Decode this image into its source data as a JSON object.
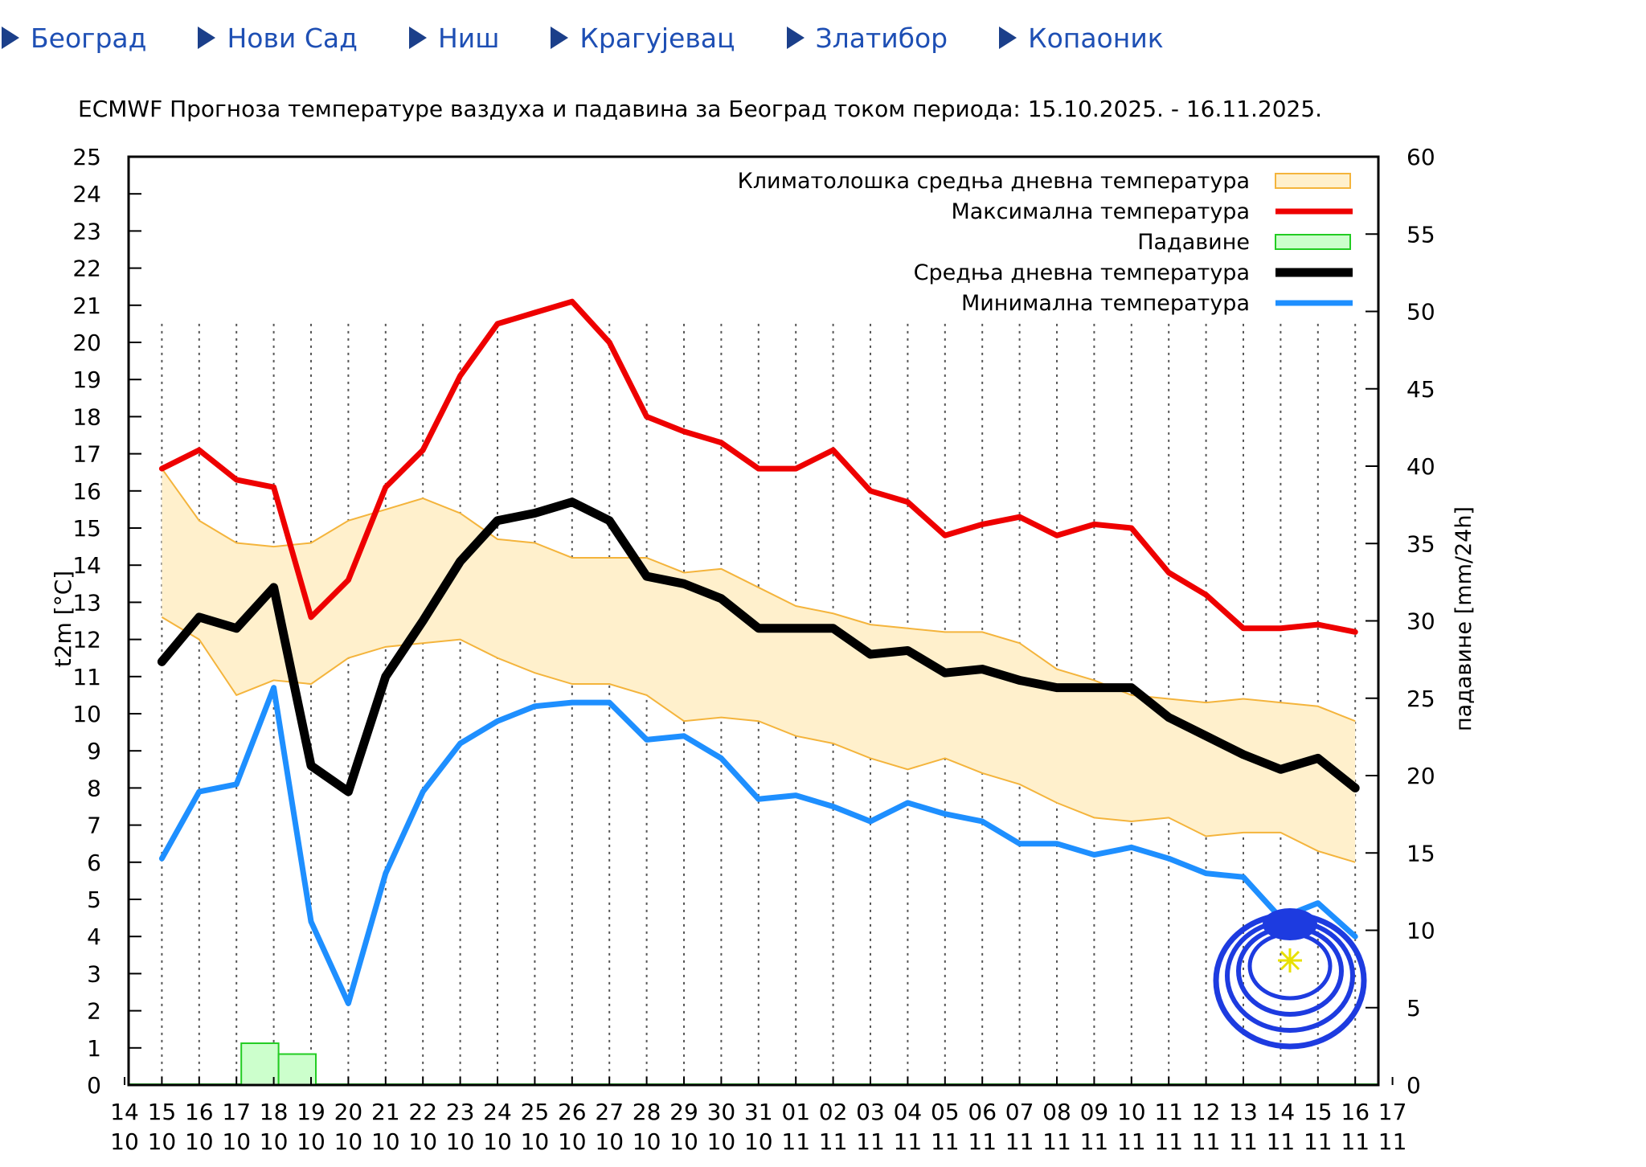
{
  "nav": {
    "items": [
      {
        "label": "Београд"
      },
      {
        "label": "Нови Сад"
      },
      {
        "label": "Ниш"
      },
      {
        "label": "Крагујевац"
      },
      {
        "label": "Златибор"
      },
      {
        "label": "Копаоник"
      }
    ]
  },
  "chart_data": {
    "type": "line",
    "title": "ECMWF Прогноза температуре ваздуха и падавина за Београд током периода: 15.10.2025. - 16.11.2025.",
    "ylabel": "t2m [°C]",
    "y2label": "падавине [mm/24h]",
    "ylim": [
      0,
      25
    ],
    "y2lim": [
      0,
      60
    ],
    "yticks": [
      0,
      1,
      2,
      3,
      4,
      5,
      6,
      7,
      8,
      9,
      10,
      11,
      12,
      13,
      14,
      15,
      16,
      17,
      18,
      19,
      20,
      21,
      22,
      23,
      24,
      25
    ],
    "y2ticks": [
      0,
      5,
      10,
      15,
      20,
      25,
      30,
      35,
      40,
      45,
      50,
      55,
      60
    ],
    "x_days": [
      "14",
      "15",
      "16",
      "17",
      "18",
      "19",
      "20",
      "21",
      "22",
      "23",
      "24",
      "25",
      "26",
      "27",
      "28",
      "29",
      "30",
      "31",
      "01",
      "02",
      "03",
      "04",
      "05",
      "06",
      "07",
      "08",
      "09",
      "10",
      "11",
      "12",
      "13",
      "14",
      "15",
      "16",
      "17"
    ],
    "x_months": [
      "10",
      "10",
      "10",
      "10",
      "10",
      "10",
      "10",
      "10",
      "10",
      "10",
      "10",
      "10",
      "10",
      "10",
      "10",
      "10",
      "10",
      "10",
      "11",
      "11",
      "11",
      "11",
      "11",
      "11",
      "11",
      "11",
      "11",
      "11",
      "11",
      "11",
      "11",
      "11",
      "11",
      "11",
      "11"
    ],
    "legend": {
      "climate": "Климатолошка средња дневна температура",
      "max": "Максимална температура",
      "precip": "Падавине",
      "mean": "Средња дневна температура",
      "min": "Минимална температура"
    },
    "colors": {
      "max": "#ee0000",
      "min": "#1e8fff",
      "mean": "#000000",
      "band_fill": "#fff0cc",
      "band_edge": "#f4b43c",
      "precip_fill": "#ccffcc",
      "precip_edge": "#22cc22",
      "grid": "#555555"
    },
    "dates": [
      "15.10",
      "16.10",
      "17.10",
      "18.10",
      "19.10",
      "20.10",
      "21.10",
      "22.10",
      "23.10",
      "24.10",
      "25.10",
      "26.10",
      "27.10",
      "28.10",
      "29.10",
      "30.10",
      "31.10",
      "01.11",
      "02.11",
      "03.11",
      "04.11",
      "05.11",
      "06.11",
      "07.11",
      "08.11",
      "09.11",
      "10.11",
      "11.11",
      "12.11",
      "13.11",
      "14.11",
      "15.11",
      "16.11"
    ],
    "series": [
      {
        "name": "Максимална температура",
        "key": "max",
        "values": [
          16.6,
          17.1,
          16.3,
          16.1,
          12.6,
          13.6,
          16.1,
          17.1,
          19.1,
          20.5,
          20.8,
          21.1,
          20.0,
          18.0,
          17.6,
          17.3,
          16.6,
          16.6,
          17.1,
          16.0,
          15.7,
          14.8,
          15.1,
          15.3,
          14.8,
          15.1,
          15.0,
          13.8,
          13.2,
          12.3,
          12.3,
          12.4,
          12.2
        ]
      },
      {
        "name": "Средња дневна температура",
        "key": "mean",
        "values": [
          11.4,
          12.6,
          12.3,
          13.4,
          8.6,
          7.9,
          11.0,
          12.5,
          14.1,
          15.2,
          15.4,
          15.7,
          15.2,
          13.7,
          13.5,
          13.1,
          12.3,
          12.3,
          12.3,
          11.6,
          11.7,
          11.1,
          11.2,
          10.9,
          10.7,
          10.7,
          10.7,
          9.9,
          9.4,
          8.9,
          8.5,
          8.8,
          8.0
        ]
      },
      {
        "name": "Минимална температура",
        "key": "min",
        "values": [
          6.1,
          7.9,
          8.1,
          10.7,
          4.4,
          2.2,
          5.7,
          7.9,
          9.2,
          9.8,
          10.2,
          10.3,
          10.3,
          9.3,
          9.4,
          8.8,
          7.7,
          7.8,
          7.5,
          7.1,
          7.6,
          7.3,
          7.1,
          6.5,
          6.5,
          6.2,
          6.4,
          6.1,
          5.7,
          5.6,
          4.5,
          4.9,
          4.0
        ]
      }
    ],
    "climate_band": {
      "upper": [
        16.6,
        15.2,
        14.6,
        14.5,
        14.6,
        15.2,
        15.5,
        15.8,
        15.4,
        14.7,
        14.6,
        14.2,
        14.2,
        14.2,
        13.8,
        13.9,
        13.4,
        12.9,
        12.7,
        12.4,
        12.3,
        12.2,
        12.2,
        11.9,
        11.2,
        10.9,
        10.5,
        10.4,
        10.3,
        10.4,
        10.3,
        10.2,
        9.8
      ],
      "lower": [
        12.6,
        12.0,
        10.5,
        10.9,
        10.8,
        11.5,
        11.8,
        11.9,
        12.0,
        11.5,
        11.1,
        10.8,
        10.8,
        10.5,
        9.8,
        9.9,
        9.8,
        9.4,
        9.2,
        8.8,
        8.5,
        8.8,
        8.4,
        8.1,
        7.6,
        7.2,
        7.1,
        7.2,
        6.7,
        6.8,
        6.8,
        6.3,
        6.0
      ]
    },
    "precipitation_mm": [
      0,
      0,
      2.7,
      2.0,
      0,
      0,
      0,
      0,
      0,
      0,
      0,
      0,
      0,
      0,
      0,
      0,
      0,
      0,
      0,
      0,
      0,
      0,
      0,
      0,
      0,
      0,
      0,
      0,
      0,
      0,
      0,
      0,
      0
    ]
  }
}
